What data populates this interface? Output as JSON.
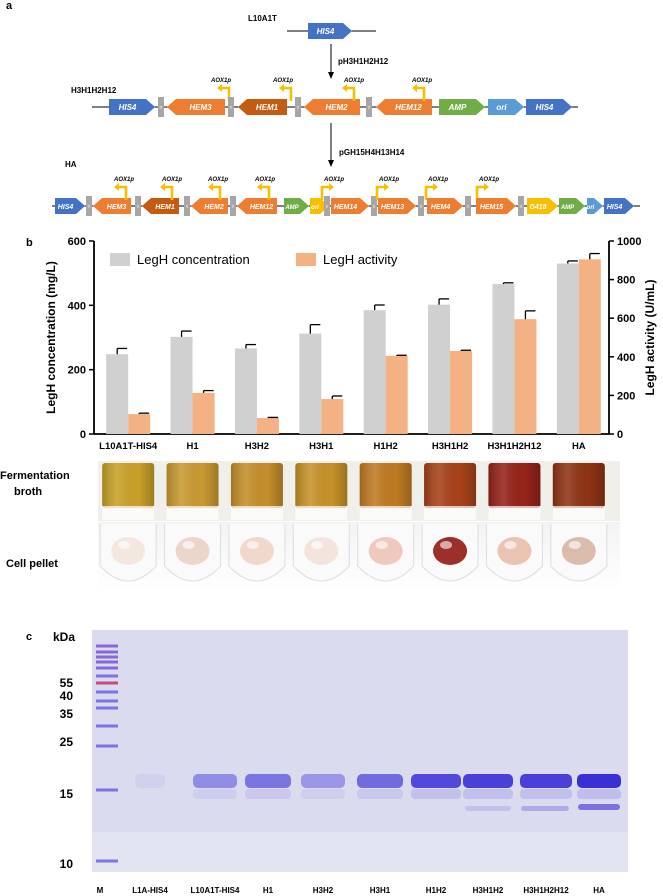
{
  "panel_a": {
    "letter": "a",
    "strain_top": "L10A1T",
    "plasmid_1": "pH3H1H2H12",
    "strain_mid": "H3H1H2H12",
    "plasmid_2": "pGH15H4H13H14",
    "strain_bottom": "HA",
    "promoter": "AOX1p",
    "terminator": "T",
    "genes": {
      "his4": "HIS4",
      "hem3": "HEM3",
      "hem1": "HEM1",
      "hem2": "HEM2",
      "hem12": "HEM12",
      "amp": "AMP",
      "ori": "ori",
      "hem14": "HEM14",
      "hem13": "HEM13",
      "hem4": "HEM4",
      "hem15": "HEM15",
      "g418": "G418"
    },
    "colors": {
      "his4": "#4472c4",
      "hem": "#ed7d31",
      "hem1": "#c55a11",
      "amp": "#70ad47",
      "ori": "#5b9bd5",
      "g418": "#f6c000",
      "promoter": "#f6c000",
      "terminator": "#a6a6a6"
    }
  },
  "panel_b": {
    "letter": "b",
    "photo_label_1": "Fermentation broth",
    "photo_label_2": "Cell pellet",
    "chart_data": {
      "type": "bar",
      "categories": [
        "L10A1T-HIS4",
        "H1",
        "H3H2",
        "H3H1",
        "H1H2",
        "H3H1H2",
        "H3H1H2H12",
        "HA"
      ],
      "series": [
        {
          "name": "LegH concentration",
          "axis": "left",
          "color": "#d0d0d0",
          "values": [
            248,
            302,
            266,
            312,
            385,
            402,
            466,
            530
          ],
          "errors": [
            18,
            18,
            12,
            28,
            16,
            18,
            4,
            8
          ]
        },
        {
          "name": "LegH activity",
          "axis": "right",
          "color": "#f4b183",
          "values": [
            103,
            213,
            83,
            181,
            405,
            430,
            595,
            905
          ],
          "errors": [
            5,
            12,
            3,
            16,
            3,
            4,
            43,
            30
          ]
        }
      ],
      "ylabel_left": "LegH concentration (mg/L)",
      "ylabel_right": "LegH activity (U/mL)",
      "ylim_left": [
        0,
        600
      ],
      "ylim_right": [
        0,
        1000
      ],
      "yticks_left": [
        "0",
        "200",
        "400",
        "600"
      ],
      "yticks_right": [
        "0",
        "200",
        "400",
        "600",
        "800",
        "1000"
      ],
      "legend_position": "top-left"
    }
  },
  "panel_c": {
    "letter": "c",
    "unit": "kDa",
    "markers": [
      "55",
      "40",
      "35",
      "25",
      "15",
      "10"
    ],
    "lanes": [
      "M",
      "L1A-HIS4",
      "L10A1T-HIS4",
      "H1",
      "H3H2",
      "H3H1",
      "H1H2",
      "H3H1H2",
      "H3H1H2H12",
      "HA"
    ],
    "band_intensity": [
      0,
      0.05,
      0.45,
      0.6,
      0.4,
      0.65,
      0.85,
      0.9,
      0.9,
      1.0
    ],
    "colors": {
      "gel": "#dadbef",
      "band": "#3a2fd6"
    }
  }
}
